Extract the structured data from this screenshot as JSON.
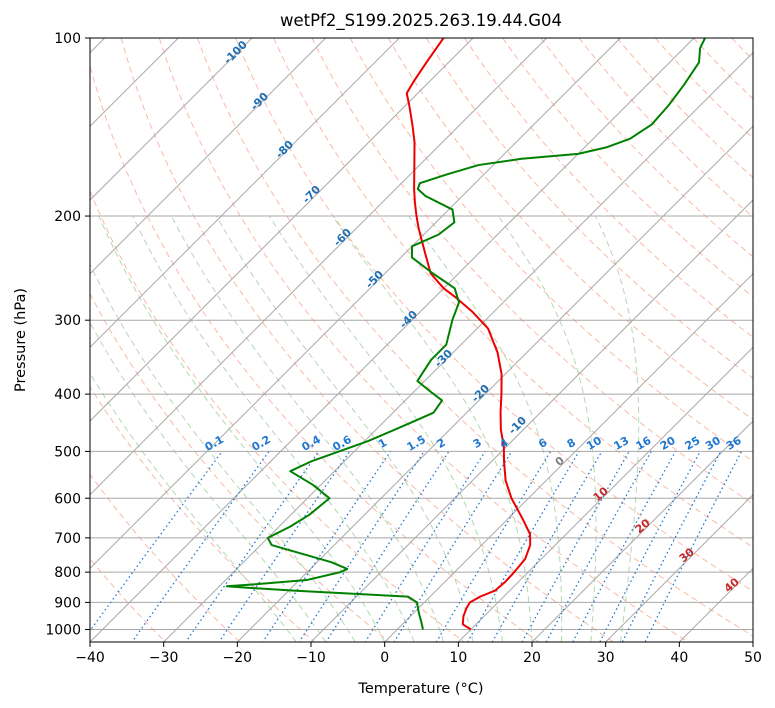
{
  "chart_data": {
    "type": "line",
    "subtype": "skew-t log-p diagram",
    "title": "wetPf2_S199.2025.263.19.44.G04",
    "xlabel": "Temperature (°C)",
    "ylabel": "Pressure (hPa)",
    "xlim": [
      -40,
      50
    ],
    "ylim": [
      1050,
      100
    ],
    "y_scale": "log",
    "grid": true,
    "x_ticks": [
      "−40",
      "−30",
      "−20",
      "−10",
      "0",
      "10",
      "20",
      "30",
      "40",
      "50"
    ],
    "y_ticks": [
      "1000",
      "900",
      "800",
      "700",
      "600",
      "500",
      "400",
      "300",
      "200",
      "100"
    ],
    "colors": {
      "temperature": "#ee0000",
      "dewpoint": "#008000",
      "isotherm": "#a8a8a8",
      "dry_adiabat": "#f5a38a",
      "moist_adiabat": "#9fcf9f",
      "mixing_ratio": "#1f78d1",
      "isotherm_label": "#1f6fb4",
      "theta_label": "#c62828",
      "zero_label": "#808080"
    },
    "series": [
      {
        "name": "",
        "role": "temperature",
        "points": [
          [
            1000,
            10.0
          ],
          [
            980,
            8.2
          ],
          [
            950,
            7.2
          ],
          [
            920,
            6.5
          ],
          [
            900,
            6.2
          ],
          [
            880,
            6.8
          ],
          [
            860,
            8.0
          ],
          [
            830,
            8.2
          ],
          [
            800,
            8.1
          ],
          [
            760,
            7.8
          ],
          [
            720,
            6.6
          ],
          [
            690,
            5.1
          ],
          [
            650,
            2.0
          ],
          [
            600,
            -2.3
          ],
          [
            560,
            -5.5
          ],
          [
            520,
            -8.3
          ],
          [
            490,
            -10.4
          ],
          [
            460,
            -13.0
          ],
          [
            430,
            -15.4
          ],
          [
            400,
            -17.8
          ],
          [
            370,
            -20.5
          ],
          [
            340,
            -24.0
          ],
          [
            310,
            -28.5
          ],
          [
            290,
            -33.0
          ],
          [
            275,
            -37.0
          ],
          [
            265,
            -40.0
          ],
          [
            250,
            -43.8
          ],
          [
            230,
            -47.5
          ],
          [
            210,
            -51.5
          ],
          [
            200,
            -53.5
          ],
          [
            190,
            -55.5
          ],
          [
            180,
            -57.5
          ],
          [
            165,
            -60.5
          ],
          [
            150,
            -63.8
          ],
          [
            140,
            -66.5
          ],
          [
            130,
            -69.5
          ],
          [
            124,
            -71.5
          ],
          [
            118,
            -72.2
          ],
          [
            110,
            -73.0
          ],
          [
            100,
            -74.0
          ]
        ]
      },
      {
        "name": "",
        "role": "dewpoint",
        "points": [
          [
            1000,
            3.5
          ],
          [
            970,
            2.2
          ],
          [
            940,
            0.8
          ],
          [
            900,
            -1.0
          ],
          [
            880,
            -3.0
          ],
          [
            860,
            -19.0
          ],
          [
            850,
            -26.0
          ],
          [
            845,
            -29.0
          ],
          [
            840,
            -26.0
          ],
          [
            825,
            -19.0
          ],
          [
            800,
            -15.5
          ],
          [
            790,
            -15.0
          ],
          [
            770,
            -18.0
          ],
          [
            720,
            -28.5
          ],
          [
            700,
            -30.0
          ],
          [
            670,
            -28.5
          ],
          [
            640,
            -27.5
          ],
          [
            600,
            -27.0
          ],
          [
            570,
            -31.0
          ],
          [
            540,
            -36.0
          ],
          [
            520,
            -34.5
          ],
          [
            480,
            -29.5
          ],
          [
            450,
            -26.5
          ],
          [
            430,
            -24.5
          ],
          [
            410,
            -25.0
          ],
          [
            395,
            -28.0
          ],
          [
            380,
            -31.0
          ],
          [
            350,
            -32.0
          ],
          [
            330,
            -32.0
          ],
          [
            300,
            -34.5
          ],
          [
            280,
            -36.0
          ],
          [
            265,
            -38.5
          ],
          [
            250,
            -43.5
          ],
          [
            235,
            -48.5
          ],
          [
            225,
            -50.0
          ],
          [
            215,
            -48.0
          ],
          [
            205,
            -47.5
          ],
          [
            195,
            -49.5
          ],
          [
            185,
            -55.0
          ],
          [
            180,
            -57.0
          ],
          [
            176,
            -57.5
          ],
          [
            170,
            -55.0
          ],
          [
            164,
            -52.0
          ],
          [
            160,
            -47.0
          ],
          [
            157,
            -40.0
          ],
          [
            153,
            -37.0
          ],
          [
            148,
            -35.0
          ],
          [
            140,
            -34.0
          ],
          [
            130,
            -34.3
          ],
          [
            120,
            -35.0
          ],
          [
            110,
            -36.0
          ],
          [
            104,
            -37.8
          ],
          [
            100,
            -38.5
          ]
        ]
      }
    ],
    "isotherm_labels": [
      "-100",
      "-90",
      "-80",
      "-70",
      "-60",
      "-50",
      "-40",
      "-30",
      "-20",
      "-10"
    ],
    "mixing_ratio_labels": [
      "0.1",
      "0.2",
      "0.4",
      "0.6",
      "1",
      "1.5",
      "2",
      "3",
      "4",
      "6",
      "8",
      "10",
      "13",
      "16",
      "20",
      "25",
      "30",
      "36"
    ],
    "theta_labels": [
      "0",
      "10",
      "20",
      "30",
      "40"
    ]
  }
}
